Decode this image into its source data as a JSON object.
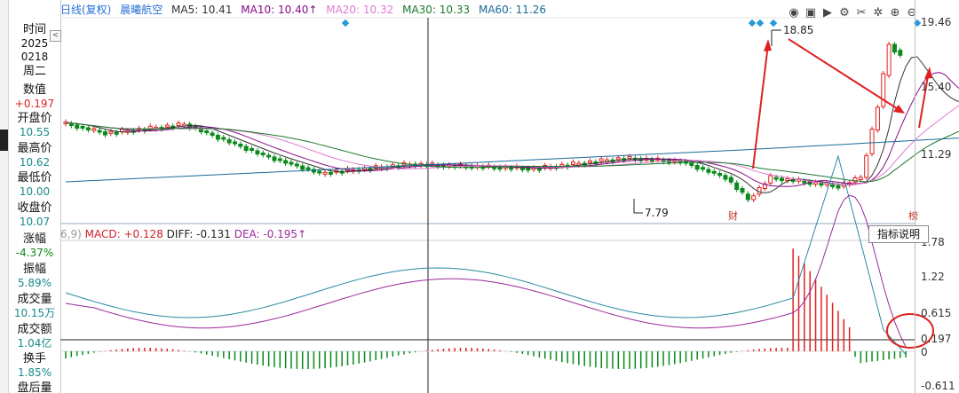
{
  "sidebar": {
    "collapse_box": "<",
    "items": [
      {
        "label": "时间",
        "value": "2025",
        "value2": "0218",
        "color": "plain"
      },
      {
        "label": "周二",
        "value": "",
        "color": "plain"
      },
      {
        "label": "数值",
        "value": "+0.197",
        "color": "red"
      },
      {
        "label": "开盘价",
        "value": "10.55",
        "color": "teal"
      },
      {
        "label": "最高价",
        "value": "10.62",
        "color": "teal"
      },
      {
        "label": "最低价",
        "value": "10.00",
        "color": "teal"
      },
      {
        "label": "收盘价",
        "value": "10.07",
        "color": "teal"
      },
      {
        "label": "涨幅",
        "value": "-4.37%",
        "color": "green"
      },
      {
        "label": "振幅",
        "value": "5.89%",
        "color": "teal"
      },
      {
        "label": "成交量",
        "value": "10.15万",
        "color": "teal"
      },
      {
        "label": "成交额",
        "value": "1.04亿",
        "color": "teal"
      },
      {
        "label": "换手",
        "value": "1.85%",
        "color": "teal"
      },
      {
        "label": "盘后量",
        "value": "",
        "color": "plain"
      }
    ]
  },
  "header": {
    "period": "日线(复权)",
    "stock_name": "晨曦航空",
    "ma5": "MA5: 10.41",
    "ma10": "MA10: 10.40",
    "ma10_arrow": "↑",
    "ma20": "MA20: 10.32",
    "ma30": "MA30: 10.33",
    "ma60": "MA60: 11.26"
  },
  "toolbar_icons": [
    "eye-icon",
    "toolbox-icon",
    "play-icon",
    "gear-icon",
    "scissors-icon",
    "settings-icon",
    "zoom-in-icon",
    "zoom-out-icon"
  ],
  "price_axis": {
    "labels": [
      "19.46",
      "15.40",
      "11.29"
    ]
  },
  "annotations": {
    "high": "18.85",
    "low": "7.79",
    "badge_left": "财",
    "badge_right": "榜"
  },
  "macd": {
    "prefix": "6,9)",
    "macd_label": "MACD: +0.128",
    "diff_label": "DIFF: -0.131",
    "dea_label": "DEA: -0.195",
    "dea_arrow": "↑",
    "indicator_button": "指标说明",
    "axis_labels": [
      "1.78",
      "1.22",
      "0.615",
      "0.197",
      "0",
      "-0.611"
    ]
  },
  "colors": {
    "up": "#e02020",
    "down": "#0a8a1a",
    "ma5": "#333333",
    "ma10": "#8a0a8a",
    "ma20": "#e07ad0",
    "ma30": "#1a7a2a",
    "ma60": "#1a6a9a",
    "diff": "#2a8aa0",
    "dea": "#9a2a9a",
    "annotation": "#e02020",
    "marker": "#2a9ad6"
  }
}
